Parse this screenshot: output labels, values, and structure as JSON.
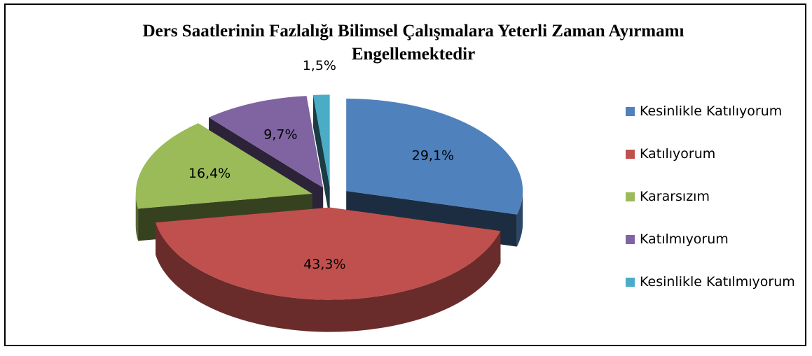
{
  "chart_data": {
    "type": "pie",
    "title": "Ders Saatlerinin Fazlalığı Bilimsel Çalışmalara Yeterli Zaman Ayırmamı Engellemektedir",
    "categories": [
      "Kesinlikle Katılıyorum",
      "Katılıyorum",
      "Kararsızım",
      "Katılmıyorum",
      "Kesinlikle Katılmıyorum"
    ],
    "values": [
      29.1,
      43.3,
      16.4,
      9.7,
      1.5
    ],
    "value_labels": [
      "29,1%",
      "43,3%",
      "16,4%",
      "9,7%",
      "1,5%"
    ],
    "colors": [
      "#4f81bd",
      "#c0504d",
      "#9bbb59",
      "#8064a2",
      "#4bacc6"
    ],
    "legend": "right"
  }
}
